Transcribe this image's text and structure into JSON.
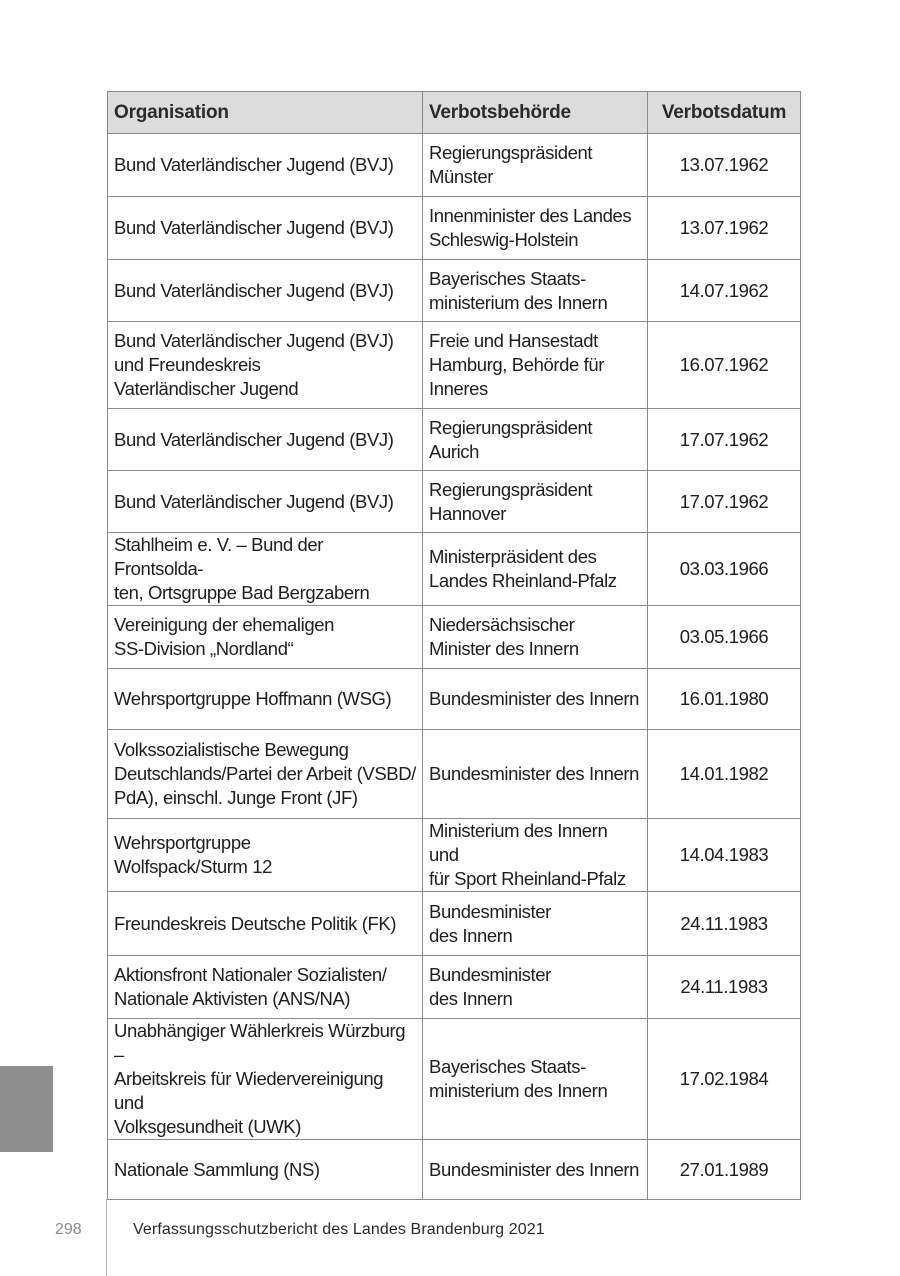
{
  "table": {
    "headers": [
      "Organisation",
      "Verbotsbehörde",
      "Verbotsdatum"
    ],
    "rows": [
      {
        "org": "Bund Vaterländischer Jugend (BVJ)",
        "authority": "Regierungspräsident\nMünster",
        "date": "13.07.1962"
      },
      {
        "org": "Bund Vaterländischer Jugend (BVJ)",
        "authority": "Innenminister des Landes\nSchleswig-Holstein",
        "date": "13.07.1962"
      },
      {
        "org": "Bund Vaterländischer Jugend (BVJ)",
        "authority": "Bayerisches Staats-\nministerium des Innern",
        "date": "14.07.1962"
      },
      {
        "org": "Bund Vaterländischer Jugend (BVJ)\nund Freundeskreis\nVaterländischer Jugend",
        "authority": "Freie und Hansestadt\nHamburg, Behörde für\nInneres",
        "date": "16.07.1962"
      },
      {
        "org": "Bund Vaterländischer Jugend (BVJ)",
        "authority": "Regierungspräsident\nAurich",
        "date": "17.07.1962"
      },
      {
        "org": "Bund Vaterländischer Jugend (BVJ)",
        "authority": "Regierungspräsident\nHannover",
        "date": "17.07.1962"
      },
      {
        "org": "Stahlheim e. V. – Bund der Frontsolda-\nten, Ortsgruppe Bad Bergzabern",
        "authority": "Ministerpräsident des\nLandes Rheinland-Pfalz",
        "date": "03.03.1966"
      },
      {
        "org": "Vereinigung der ehemaligen\nSS-Division „Nordland“",
        "authority": "Niedersächsischer\nMinister des Innern",
        "date": "03.05.1966"
      },
      {
        "org": "Wehrsportgruppe Hoffmann (WSG)",
        "authority": "Bundesminister des Innern",
        "date": "16.01.1980"
      },
      {
        "org": "Volkssozialistische Bewegung\nDeutschlands/Partei der Arbeit (VSBD/\nPdA), einschl. Junge Front (JF)",
        "authority": "Bundesminister des Innern",
        "date": "14.01.1982"
      },
      {
        "org": "Wehrsportgruppe\nWolfspack/Sturm 12",
        "authority": "Ministerium des Innern und\nfür Sport Rheinland-Pfalz",
        "date": "14.04.1983"
      },
      {
        "org": "Freundeskreis Deutsche Politik (FK)",
        "authority": "Bundesminister\ndes Innern",
        "date": "24.11.1983"
      },
      {
        "org": "Aktionsfront Nationaler Sozialisten/\nNationale Aktivisten (ANS/NA)",
        "authority": "Bundesminister\ndes Innern",
        "date": "24.11.1983"
      },
      {
        "org": "Unabhängiger Wählerkreis Würzburg –\nArbeitskreis für Wiedervereinigung und\nVolksgesundheit (UWK)",
        "authority": "Bayerisches Staats-\nministerium des Innern",
        "date": "17.02.1984"
      },
      {
        "org": "Nationale Sammlung (NS)",
        "authority": "Bundesminister des Innern",
        "date": "27.01.1989"
      }
    ]
  },
  "footer": {
    "page_number": "298",
    "title": "Verfassungsschutzbericht des Landes Brandenburg 2021"
  }
}
